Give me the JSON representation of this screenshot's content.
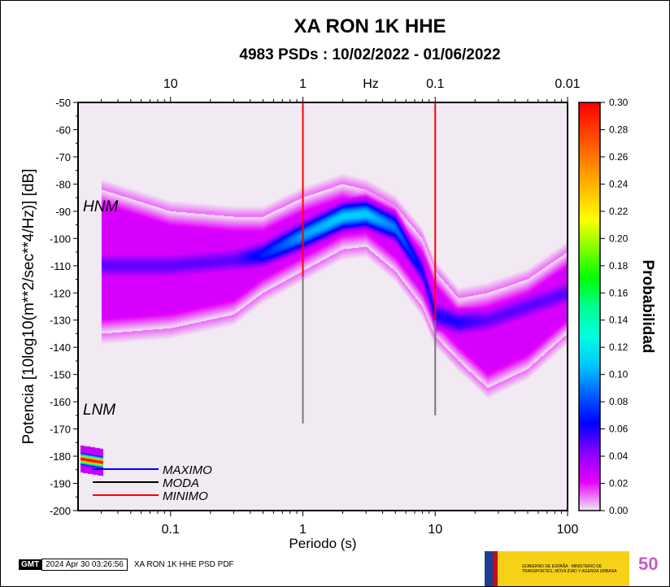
{
  "title": "XA RON 1K HHE",
  "subtitle": "4983 PSDs : 10/02/2022 - 01/06/2022",
  "footer": {
    "gmt_logo": "GMT",
    "timestamp": "2024 Apr 30 03:26:56",
    "label": "XA RON 1K HHE PSD PDF",
    "logo_text": "GOBIERNO DE ESPAÑA · MINISTERIO DE TRANSPORTES, MOVILIDAD Y AGENDA URBANA"
  },
  "chart_data": {
    "type": "heatmap",
    "xlabel": "Periodo (s)",
    "ylabel": "Potencia [10log10(m**2/sec**4/Hz)] [dB]",
    "x_scale": "log",
    "xlim": [
      0.02,
      100
    ],
    "ylim": [
      -200,
      -50
    ],
    "x_ticks": [
      "0.1",
      "1",
      "10",
      "100"
    ],
    "x_tick_values": [
      0.1,
      1,
      10,
      100
    ],
    "top_axis": {
      "label": "Hz",
      "ticks": [
        "10",
        "1",
        "0.1",
        "0.01"
      ],
      "tick_periods": [
        0.1,
        1,
        10,
        100
      ]
    },
    "y_ticks": [
      -50,
      -60,
      -70,
      -80,
      -90,
      -100,
      -110,
      -120,
      -130,
      -140,
      -150,
      -160,
      -170,
      -180,
      -190,
      -200
    ],
    "colorbar": {
      "label": "Probabilidad",
      "range": [
        0,
        0.3
      ],
      "ticks": [
        "0.00",
        "0.02",
        "0.04",
        "0.06",
        "0.08",
        "0.10",
        "0.12",
        "0.14",
        "0.16",
        "0.18",
        "0.20",
        "0.22",
        "0.24",
        "0.26",
        "0.28",
        "0.30"
      ],
      "colors": [
        "#f2eaf2",
        "#e600ff",
        "#8a00ff",
        "#0000ff",
        "#0060ff",
        "#00c8ff",
        "#00ffe0",
        "#00ff90",
        "#00ff00",
        "#80ff00",
        "#ffff00",
        "#ffc000",
        "#ff8000",
        "#ff4000",
        "#ff0000"
      ]
    },
    "annotations": {
      "hnm": "HNM",
      "lnm": "LNM"
    },
    "legend": [
      {
        "name": "MAXIMO",
        "color": "#0000ff"
      },
      {
        "name": "MODA",
        "color": "#000000"
      },
      {
        "name": "MINIMO",
        "color": "#ff0000"
      }
    ],
    "density_estimate": {
      "periods": [
        0.03,
        0.1,
        0.3,
        0.5,
        1,
        2,
        3,
        5,
        8,
        10,
        15,
        25,
        50,
        100
      ],
      "mode_db": [
        -110,
        -110,
        -108,
        -106,
        -99,
        -92,
        -91,
        -96,
        -112,
        -128,
        -131,
        -130,
        -125,
        -120
      ],
      "lower_db": [
        -135,
        -133,
        -128,
        -120,
        -112,
        -104,
        -103,
        -112,
        -125,
        -136,
        -145,
        -155,
        -148,
        -135
      ],
      "upper_db": [
        -82,
        -90,
        -92,
        -92,
        -85,
        -80,
        -82,
        -88,
        -100,
        -112,
        -122,
        -120,
        -115,
        -105
      ],
      "peak_prob": [
        0.05,
        0.05,
        0.05,
        0.07,
        0.1,
        0.11,
        0.11,
        0.09,
        0.06,
        0.06,
        0.06,
        0.05,
        0.05,
        0.05
      ],
      "lnm_blob": {
        "period_range": [
          0.021,
          0.031
        ],
        "db": -181,
        "peak_prob": 0.3
      }
    },
    "vertical_lines": [
      {
        "period": 1,
        "red_to_db": -114,
        "gray_to_db": -168
      },
      {
        "period": 10,
        "red_to_db": -130,
        "gray_to_db": -165
      }
    ]
  }
}
